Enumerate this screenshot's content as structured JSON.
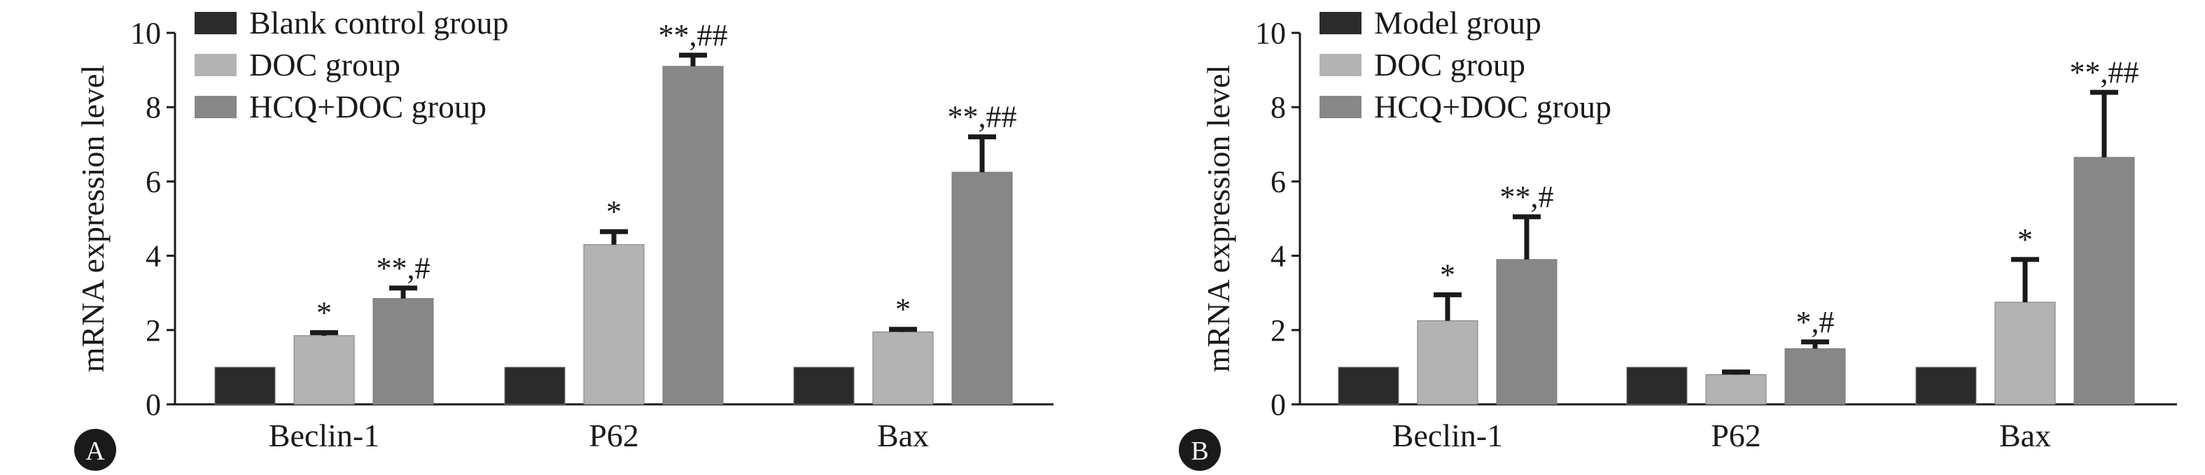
{
  "chart_data": [
    {
      "panel_label": "A",
      "type": "bar",
      "categories": [
        "Beclin-1",
        "P62",
        "Bax"
      ],
      "ylabel": "mRNA expression level",
      "ylim": [
        0,
        10
      ],
      "yticks": [
        "0",
        "2",
        "4",
        "6",
        "8",
        "10"
      ],
      "legend_position": "top-left",
      "series": [
        {
          "name": "Blank control group",
          "color": "#2b2b2b",
          "values": [
            1.0,
            1.0,
            1.0
          ],
          "errors": [
            0,
            0,
            0
          ],
          "annotations": [
            "",
            "",
            ""
          ]
        },
        {
          "name": "DOC group",
          "color": "#b3b3b3",
          "values": [
            1.85,
            4.3,
            1.95
          ],
          "errors": [
            0.08,
            0.35,
            0.07
          ],
          "annotations": [
            "*",
            "*",
            "*"
          ]
        },
        {
          "name": "HCQ+DOC group",
          "color": "#878787",
          "values": [
            2.85,
            9.1,
            6.25
          ],
          "errors": [
            0.28,
            0.3,
            0.95
          ],
          "annotations": [
            "**,#",
            "**,##",
            "**,##"
          ]
        }
      ]
    },
    {
      "panel_label": "B",
      "type": "bar",
      "categories": [
        "Beclin-1",
        "P62",
        "Bax"
      ],
      "ylabel": "mRNA expression level",
      "ylim": [
        0,
        10
      ],
      "yticks": [
        "0",
        "2",
        "4",
        "6",
        "8",
        "10"
      ],
      "legend_position": "top-left",
      "series": [
        {
          "name": "Model group",
          "color": "#2b2b2b",
          "values": [
            1.0,
            1.0,
            1.0
          ],
          "errors": [
            0,
            0,
            0
          ],
          "annotations": [
            "",
            "",
            ""
          ]
        },
        {
          "name": "DOC group",
          "color": "#b3b3b3",
          "values": [
            2.25,
            0.8,
            2.75
          ],
          "errors": [
            0.7,
            0.07,
            1.15
          ],
          "annotations": [
            "*",
            "",
            "*"
          ]
        },
        {
          "name": "HCQ+DOC group",
          "color": "#878787",
          "values": [
            3.9,
            1.5,
            6.65
          ],
          "errors": [
            1.15,
            0.18,
            1.75
          ],
          "annotations": [
            "**,#",
            "*,#",
            "**,##"
          ]
        }
      ]
    }
  ]
}
